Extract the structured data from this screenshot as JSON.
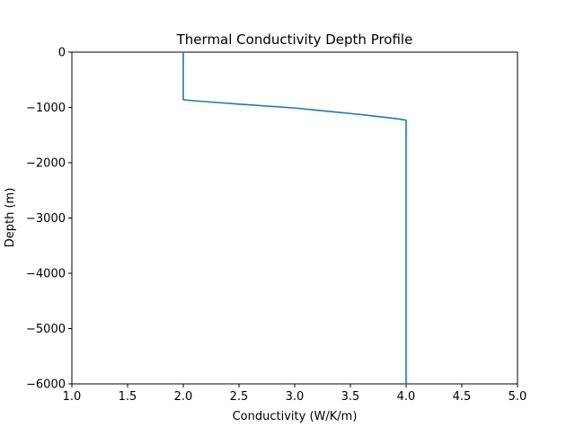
{
  "chart_data": {
    "type": "line",
    "title": "Thermal Conductivity Depth Profile",
    "xlabel": "Conductivity (W/K/m)",
    "ylabel": "Depth (m)",
    "xlim": [
      1.0,
      5.0
    ],
    "ylim": [
      -6000,
      0
    ],
    "xticks": [
      1.0,
      1.5,
      2.0,
      2.5,
      3.0,
      3.5,
      4.0,
      4.5,
      5.0
    ],
    "xtick_labels": [
      "1.0",
      "1.5",
      "2.0",
      "2.5",
      "3.0",
      "3.5",
      "4.0",
      "4.5",
      "5.0"
    ],
    "yticks": [
      0,
      -1000,
      -2000,
      -3000,
      -4000,
      -5000,
      -6000
    ],
    "ytick_labels": [
      "0",
      "−1000",
      "−2000",
      "−3000",
      "−4000",
      "−5000",
      "−6000"
    ],
    "grid": false,
    "series": [
      {
        "color": "#1f77b4",
        "x": [
          2.0,
          2.0,
          2.1,
          2.5,
          3.0,
          3.3,
          3.6,
          3.9,
          4.0,
          4.0
        ],
        "y": [
          0,
          -860,
          -880,
          -940,
          -1010,
          -1070,
          -1130,
          -1200,
          -1230,
          -6000
        ]
      }
    ]
  }
}
